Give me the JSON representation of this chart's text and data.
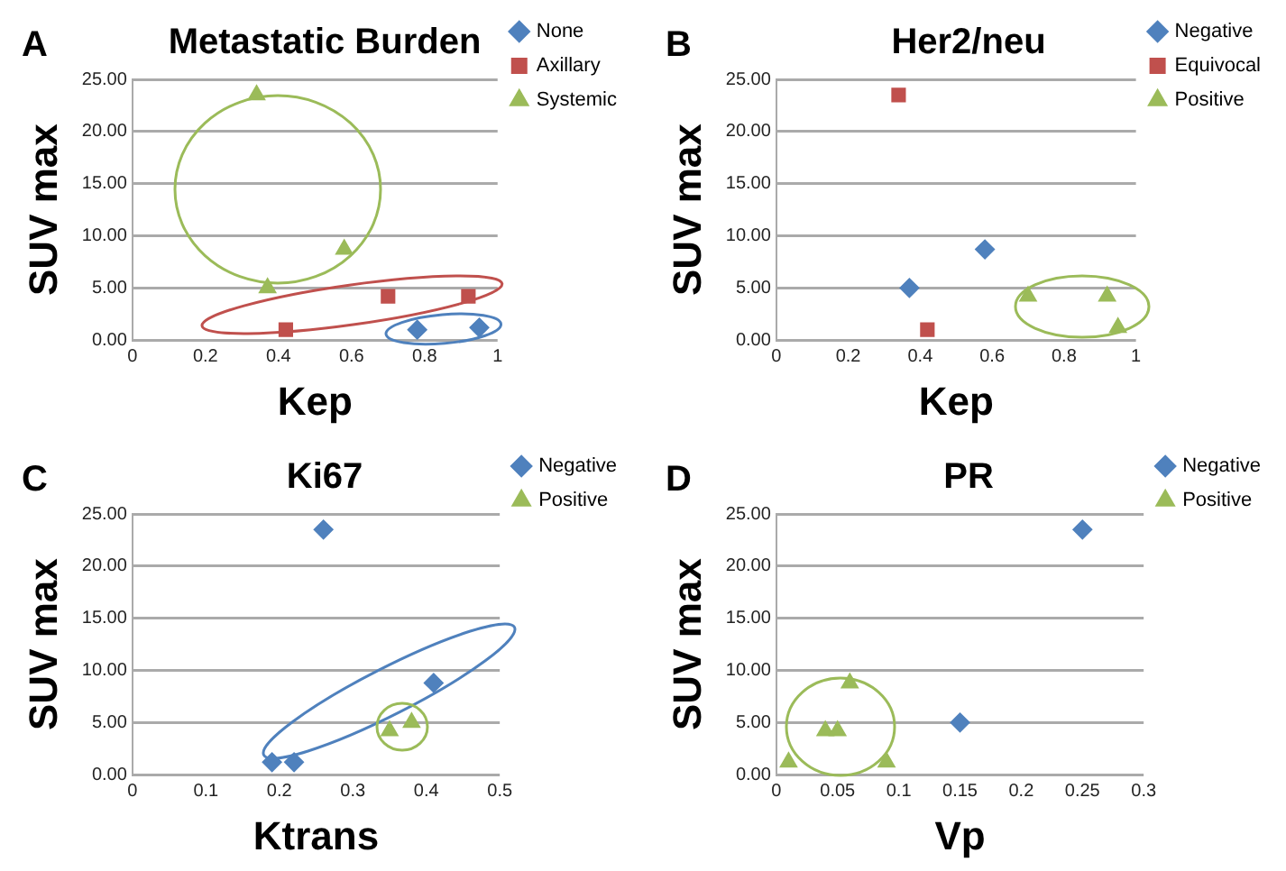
{
  "chart_data": [
    {
      "type": "scatter",
      "title": "Metastatic Burden",
      "xlabel": "Kep",
      "ylabel": "SUV max",
      "annotations": [
        "A"
      ],
      "xlim": [
        0,
        1
      ],
      "xticks": [
        0,
        0.2,
        0.4,
        0.6,
        0.8,
        1
      ],
      "ylim": [
        0,
        25
      ],
      "yticks": [
        {
          "value": 0,
          "label": "0.00"
        },
        {
          "value": 5,
          "label": "5.00"
        },
        {
          "value": 10,
          "label": "10.00"
        },
        {
          "value": 15,
          "label": "15.00"
        },
        {
          "value": 20,
          "label": "20.00"
        },
        {
          "value": 25,
          "label": "25.00"
        }
      ],
      "grid": "y",
      "legend": "top right",
      "series": [
        {
          "name": "None",
          "color": "#4f81bd",
          "marker": "diamond",
          "x": [
            0.78,
            0.95
          ],
          "values": [
            1.0,
            1.2
          ]
        },
        {
          "name": "Axillary",
          "color": "#c0504d",
          "marker": "square",
          "x": [
            0.42,
            0.7,
            0.92
          ],
          "values": [
            1.0,
            4.2,
            4.2
          ]
        },
        {
          "name": "Systemic",
          "color": "#9bbb59",
          "marker": "triangle",
          "x": [
            0.34,
            0.37,
            0.58
          ],
          "values": [
            23.5,
            5.0,
            8.7
          ]
        }
      ]
    },
    {
      "type": "scatter",
      "title": "Her2/neu",
      "xlabel": "Kep",
      "ylabel": "SUV max",
      "annotations": [
        "B"
      ],
      "xlim": [
        0,
        1
      ],
      "xticks": [
        0,
        0.2,
        0.4,
        0.6,
        0.8,
        1
      ],
      "ylim": [
        0,
        25
      ],
      "yticks": [
        {
          "value": 0,
          "label": "0.00"
        },
        {
          "value": 5,
          "label": "5.00"
        },
        {
          "value": 10,
          "label": "10.00"
        },
        {
          "value": 15,
          "label": "15.00"
        },
        {
          "value": 20,
          "label": "20.00"
        },
        {
          "value": 25,
          "label": "25.00"
        }
      ],
      "grid": "y",
      "legend": "top right",
      "series": [
        {
          "name": "Negative",
          "color": "#4f81bd",
          "marker": "diamond",
          "x": [
            0.37,
            0.58
          ],
          "values": [
            5.0,
            8.7
          ]
        },
        {
          "name": "Equivocal",
          "color": "#c0504d",
          "marker": "square",
          "x": [
            0.34,
            0.42
          ],
          "values": [
            23.5,
            1.0
          ]
        },
        {
          "name": "Positive",
          "color": "#9bbb59",
          "marker": "triangle",
          "x": [
            0.7,
            0.92,
            0.95
          ],
          "values": [
            4.2,
            4.2,
            1.2
          ]
        }
      ]
    },
    {
      "type": "scatter",
      "title": "Ki67",
      "xlabel": "Ktrans",
      "ylabel": "SUV max",
      "annotations": [
        "C"
      ],
      "xlim": [
        0,
        0.5
      ],
      "xticks": [
        0,
        0.1,
        0.2,
        0.3,
        0.4,
        0.5
      ],
      "ylim": [
        0,
        25
      ],
      "yticks": [
        {
          "value": 0,
          "label": "0.00"
        },
        {
          "value": 5,
          "label": "5.00"
        },
        {
          "value": 10,
          "label": "10.00"
        },
        {
          "value": 15,
          "label": "15.00"
        },
        {
          "value": 20,
          "label": "20.00"
        },
        {
          "value": 25,
          "label": "25.00"
        }
      ],
      "grid": "y",
      "legend": "top right",
      "series": [
        {
          "name": "Negative",
          "color": "#4f81bd",
          "marker": "diamond",
          "x": [
            0.19,
            0.22,
            0.26,
            0.41
          ],
          "values": [
            1.2,
            1.2,
            23.5,
            8.8
          ]
        },
        {
          "name": "Positive",
          "color": "#9bbb59",
          "marker": "triangle",
          "x": [
            0.35,
            0.38
          ],
          "values": [
            4.2,
            5.0
          ]
        }
      ]
    },
    {
      "type": "scatter",
      "title": "PR",
      "xlabel": "Vp",
      "ylabel": "SUV max",
      "annotations": [
        "D"
      ],
      "xlim": [
        0,
        0.3
      ],
      "xticks": [
        0,
        0.05,
        0.1,
        0.15,
        0.2,
        0.25,
        0.3
      ],
      "ylim": [
        0,
        25
      ],
      "yticks": [
        {
          "value": 0,
          "label": "0.00"
        },
        {
          "value": 5,
          "label": "5.00"
        },
        {
          "value": 10,
          "label": "10.00"
        },
        {
          "value": 15,
          "label": "15.00"
        },
        {
          "value": 20,
          "label": "20.00"
        },
        {
          "value": 25,
          "label": "25.00"
        }
      ],
      "grid": "y",
      "legend": "top right",
      "series": [
        {
          "name": "Negative",
          "color": "#4f81bd",
          "marker": "diamond",
          "x": [
            0.15,
            0.25
          ],
          "values": [
            5.0,
            23.5
          ]
        },
        {
          "name": "Positive",
          "color": "#9bbb59",
          "marker": "triangle",
          "x": [
            0.01,
            0.04,
            0.05,
            0.06,
            0.09
          ],
          "values": [
            1.2,
            4.2,
            4.2,
            8.8,
            1.2
          ]
        }
      ]
    }
  ]
}
